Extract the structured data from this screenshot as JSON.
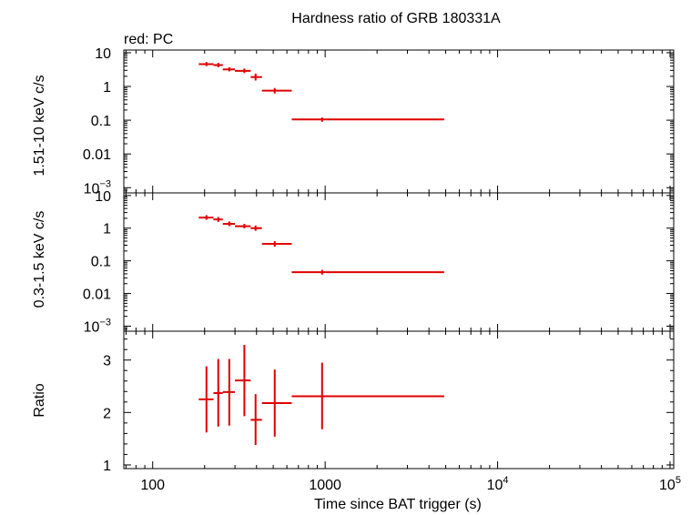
{
  "chart_data": {
    "title": "Hardness ratio of GRB 180331A",
    "subtitle": "red: PC",
    "series_color": "#e00000",
    "xlabel": "Time since BAT trigger (s)",
    "x_scale": "log",
    "xlim": [
      68,
      105000
    ],
    "x_ticks": [
      {
        "value": 100,
        "label": "100"
      },
      {
        "value": 1000,
        "label": "1000"
      },
      {
        "value": 10000,
        "base": "10",
        "exp": "4"
      },
      {
        "value": 100000,
        "base": "10",
        "exp": "5"
      }
    ],
    "panels": [
      {
        "name": "hard",
        "ylabel": "1.51-10 keV c/s",
        "y_scale": "log",
        "ylim": [
          0.0007,
          12
        ],
        "y_ticks": [
          {
            "value": 10,
            "label": "10"
          },
          {
            "value": 1,
            "label": "1"
          },
          {
            "value": 0.1,
            "label": "0.1"
          },
          {
            "value": 0.01,
            "label": "0.01"
          },
          {
            "value": 0.001,
            "base": "10",
            "exp": "−3"
          }
        ],
        "points": [
          {
            "x": 205,
            "xlo": 185,
            "xhi": 225,
            "y": 4.6,
            "ylo": 4.0,
            "yhi": 5.3
          },
          {
            "x": 240,
            "xlo": 225,
            "xhi": 255,
            "y": 4.3,
            "ylo": 3.7,
            "yhi": 5.0
          },
          {
            "x": 278,
            "xlo": 255,
            "xhi": 300,
            "y": 3.2,
            "ylo": 2.8,
            "yhi": 3.7
          },
          {
            "x": 340,
            "xlo": 300,
            "xhi": 370,
            "y": 2.9,
            "ylo": 2.5,
            "yhi": 3.4
          },
          {
            "x": 395,
            "xlo": 370,
            "xhi": 430,
            "y": 1.9,
            "ylo": 1.5,
            "yhi": 2.4
          },
          {
            "x": 510,
            "xlo": 430,
            "xhi": 640,
            "y": 0.75,
            "ylo": 0.62,
            "yhi": 0.9
          },
          {
            "x": 960,
            "xlo": 640,
            "xhi": 4900,
            "y": 0.105,
            "ylo": 0.09,
            "yhi": 0.12
          }
        ]
      },
      {
        "name": "soft",
        "ylabel": "0.3-1.5 keV c/s",
        "y_scale": "log",
        "ylim": [
          0.0007,
          12
        ],
        "y_ticks": [
          {
            "value": 10,
            "label": "10"
          },
          {
            "value": 1,
            "label": "1"
          },
          {
            "value": 0.1,
            "label": "0.1"
          },
          {
            "value": 0.01,
            "label": "0.01"
          },
          {
            "value": 0.001,
            "base": "10",
            "exp": "−3"
          }
        ],
        "points": [
          {
            "x": 205,
            "xlo": 185,
            "xhi": 225,
            "y": 2.1,
            "ylo": 1.8,
            "yhi": 2.5
          },
          {
            "x": 240,
            "xlo": 225,
            "xhi": 255,
            "y": 1.85,
            "ylo": 1.55,
            "yhi": 2.2
          },
          {
            "x": 278,
            "xlo": 255,
            "xhi": 300,
            "y": 1.35,
            "ylo": 1.15,
            "yhi": 1.6
          },
          {
            "x": 340,
            "xlo": 300,
            "xhi": 370,
            "y": 1.15,
            "ylo": 0.98,
            "yhi": 1.35
          },
          {
            "x": 395,
            "xlo": 370,
            "xhi": 430,
            "y": 1.0,
            "ylo": 0.83,
            "yhi": 1.2
          },
          {
            "x": 510,
            "xlo": 430,
            "xhi": 640,
            "y": 0.33,
            "ylo": 0.27,
            "yhi": 0.4
          },
          {
            "x": 960,
            "xlo": 640,
            "xhi": 4900,
            "y": 0.045,
            "ylo": 0.038,
            "yhi": 0.053
          }
        ]
      },
      {
        "name": "ratio",
        "ylabel": "Ratio",
        "y_scale": "linear",
        "ylim": [
          0.93,
          3.55
        ],
        "y_ticks": [
          {
            "value": 1,
            "label": "1"
          },
          {
            "value": 2,
            "label": "2"
          },
          {
            "value": 3,
            "label": "3"
          }
        ],
        "points": [
          {
            "x": 205,
            "xlo": 185,
            "xhi": 225,
            "y": 2.25,
            "ylo": 1.62,
            "yhi": 2.88
          },
          {
            "x": 240,
            "xlo": 225,
            "xhi": 255,
            "y": 2.37,
            "ylo": 1.73,
            "yhi": 3.02
          },
          {
            "x": 278,
            "xlo": 255,
            "xhi": 300,
            "y": 2.39,
            "ylo": 1.75,
            "yhi": 3.02
          },
          {
            "x": 340,
            "xlo": 300,
            "xhi": 370,
            "y": 2.61,
            "ylo": 1.93,
            "yhi": 3.29
          },
          {
            "x": 395,
            "xlo": 370,
            "xhi": 430,
            "y": 1.86,
            "ylo": 1.38,
            "yhi": 2.35
          },
          {
            "x": 510,
            "xlo": 430,
            "xhi": 640,
            "y": 2.18,
            "ylo": 1.54,
            "yhi": 2.82
          },
          {
            "x": 960,
            "xlo": 640,
            "xhi": 4900,
            "y": 2.31,
            "ylo": 1.68,
            "yhi": 2.95
          }
        ]
      }
    ]
  }
}
